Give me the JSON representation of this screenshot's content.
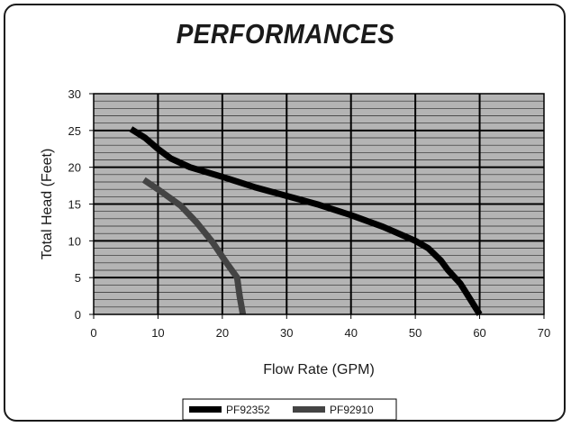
{
  "chart_data": {
    "type": "line",
    "title": "PERFORMANCES",
    "xlabel": "Flow Rate (GPM)",
    "ylabel": "Total Head (Feet)",
    "xlim": [
      0,
      70
    ],
    "ylim": [
      0,
      30
    ],
    "x_ticks": [
      "0",
      "10",
      "20",
      "30",
      "40",
      "50",
      "60",
      "70"
    ],
    "y_ticks": [
      "0",
      "5",
      "10",
      "15",
      "20",
      "25",
      "30"
    ],
    "grid": true,
    "legend_position": "bottom",
    "plot_background": "#b4b4b4",
    "series": [
      {
        "name": "PF92352",
        "color": "#000000",
        "x": [
          5.8,
          8,
          10,
          12,
          15,
          20,
          25,
          30,
          35,
          40,
          45,
          50,
          52,
          54,
          55,
          57,
          58,
          60
        ],
        "y": [
          25.2,
          24,
          22.5,
          21.2,
          20,
          18.7,
          17.3,
          16.1,
          14.9,
          13.5,
          11.9,
          10,
          9,
          7.3,
          6.1,
          4.2,
          2.8,
          0
        ]
      },
      {
        "name": "PF92910",
        "color": "#444444",
        "x": [
          7.8,
          10,
          13.5,
          16,
          18.5,
          20.5,
          22.3,
          22.7,
          23.2
        ],
        "y": [
          18.3,
          17,
          14.8,
          12.5,
          9.8,
          7.2,
          5,
          2.5,
          0
        ]
      }
    ]
  }
}
